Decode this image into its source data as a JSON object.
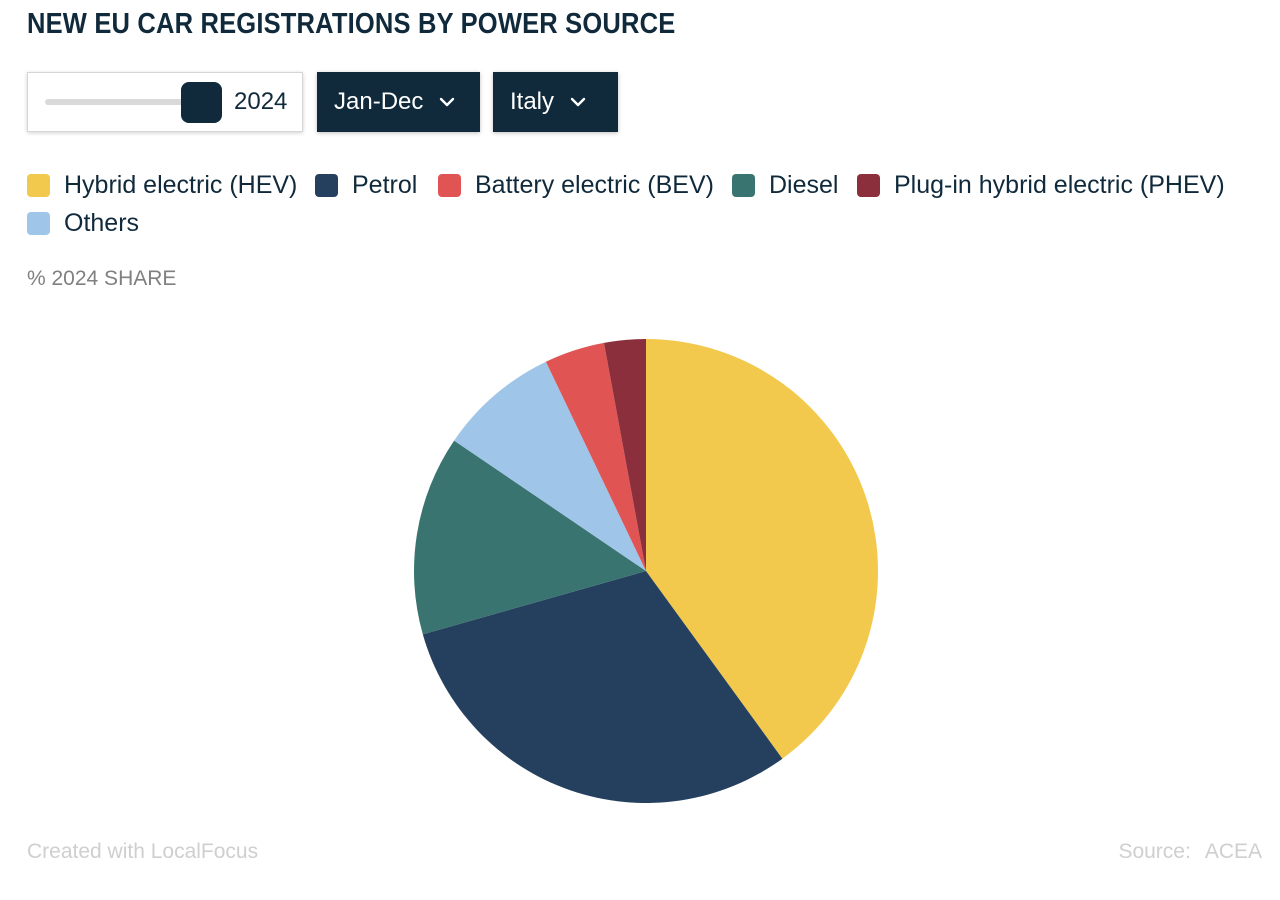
{
  "title": "NEW EU CAR REGISTRATIONS BY POWER SOURCE",
  "controls": {
    "year_slider": {
      "value": "2024",
      "position": 1.0
    },
    "period_dropdown": {
      "selected": "Jan-Dec"
    },
    "country_dropdown": {
      "selected": "Italy"
    }
  },
  "subtitle": "% 2024 SHARE",
  "footer": {
    "credit": "Created with LocalFocus",
    "source_label": "Source:",
    "source_value": "ACEA"
  },
  "colors": {
    "hev": "#f2c94c",
    "petrol": "#25405e",
    "bev": "#e05454",
    "diesel": "#3a7471",
    "phev": "#8b2f3c",
    "others": "#9fc5e8",
    "dark_navy": "#102a3c"
  },
  "icons": {
    "dropdown_chevron": "chevron-down-icon"
  },
  "chart_data": {
    "type": "pie",
    "title": "NEW EU CAR REGISTRATIONS BY POWER SOURCE",
    "subtitle": "% 2024 SHARE",
    "unit": "%",
    "legend_position": "top",
    "start_angle_deg": 0,
    "direction": "clockwise",
    "slices": [
      {
        "label": "Hybrid electric (HEV)",
        "value": 40.0,
        "color": "#f2c94c"
      },
      {
        "label": "Petrol",
        "value": 30.6,
        "color": "#25405e"
      },
      {
        "label": "Diesel",
        "value": 13.9,
        "color": "#3a7471"
      },
      {
        "label": "Others",
        "value": 8.4,
        "color": "#9fc5e8"
      },
      {
        "label": "Battery electric (BEV)",
        "value": 4.2,
        "color": "#e05454"
      },
      {
        "label": "Plug-in hybrid electric (PHEV)",
        "value": 2.9,
        "color": "#8b2f3c"
      }
    ]
  },
  "legend": [
    {
      "label": "Hybrid electric (HEV)",
      "color": "#f2c94c"
    },
    {
      "label": "Petrol",
      "color": "#25405e"
    },
    {
      "label": "Battery electric (BEV)",
      "color": "#e05454"
    },
    {
      "label": "Diesel",
      "color": "#3a7471"
    },
    {
      "label": "Plug-in hybrid electric (PHEV)",
      "color": "#8b2f3c"
    },
    {
      "label": "Others",
      "color": "#9fc5e8"
    }
  ]
}
